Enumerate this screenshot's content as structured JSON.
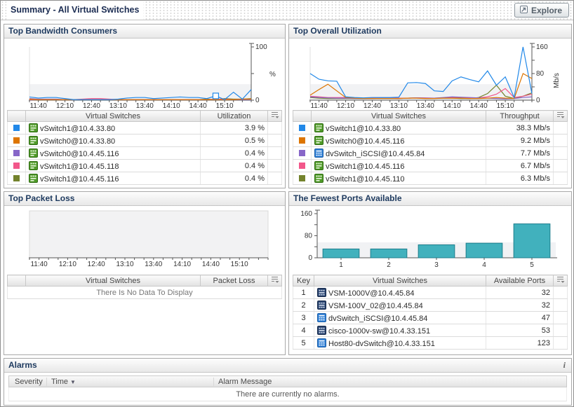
{
  "header": {
    "title": "Summary - All Virtual Switches",
    "explore_label": "Explore"
  },
  "panels": {
    "bandwidth": {
      "title": "Top Bandwidth Consumers",
      "columns": [
        "Virtual Switches",
        "Utilization"
      ],
      "rows": [
        {
          "swatch": "#2188e8",
          "icon": "vswitch-green",
          "name": "vSwitch1@10.4.33.80",
          "value": "3.9 %"
        },
        {
          "swatch": "#dd7500",
          "icon": "vswitch-green",
          "name": "vSwitch0@10.4.33.80",
          "value": "0.5 %"
        },
        {
          "swatch": "#8766c8",
          "icon": "vswitch-green",
          "name": "vSwitch0@10.4.45.116",
          "value": "0.4 %"
        },
        {
          "swatch": "#f2578a",
          "icon": "vswitch-green",
          "name": "vSwitch1@10.4.45.118",
          "value": "0.4 %"
        },
        {
          "swatch": "#73822c",
          "icon": "vswitch-green",
          "name": "vSwitch1@10.4.45.116",
          "value": "0.4 %"
        }
      ]
    },
    "utilization": {
      "title": "Top Overall Utilization",
      "columns": [
        "Virtual Switches",
        "Throughput"
      ],
      "rows": [
        {
          "swatch": "#2188e8",
          "icon": "vswitch-green",
          "name": "vSwitch1@10.4.33.80",
          "value": "38.3 Mb/s"
        },
        {
          "swatch": "#dd7500",
          "icon": "vswitch-green",
          "name": "vSwitch0@10.4.45.116",
          "value": "9.2 Mb/s"
        },
        {
          "swatch": "#8766c8",
          "icon": "dvswitch-blue",
          "name": "dvSwitch_iSCSI@10.4.45.84",
          "value": "7.7 Mb/s"
        },
        {
          "swatch": "#f2578a",
          "icon": "vswitch-green",
          "name": "vSwitch1@10.4.45.116",
          "value": "6.7 Mb/s"
        },
        {
          "swatch": "#73822c",
          "icon": "vswitch-green",
          "name": "vSwitch1@10.4.45.110",
          "value": "6.3 Mb/s"
        }
      ]
    },
    "packetloss": {
      "title": "Top Packet Loss",
      "columns": [
        "Virtual Switches",
        "Packet Loss"
      ],
      "no_data": "There Is No Data To Display"
    },
    "ports": {
      "title": "The Fewest Ports Available",
      "columns": [
        "Key",
        "Virtual Switches",
        "Available Ports"
      ],
      "rows": [
        {
          "key": "1",
          "icon": "vsm-navy",
          "name": "VSM-1000V@10.4.45.84",
          "value": "32"
        },
        {
          "key": "2",
          "icon": "vsm-navy",
          "name": "VSM-100V_02@10.4.45.84",
          "value": "32"
        },
        {
          "key": "3",
          "icon": "dvswitch-blue",
          "name": "dvSwitch_iSCSI@10.4.45.84",
          "value": "47"
        },
        {
          "key": "4",
          "icon": "vsm-navy",
          "name": "cisco-1000v-sw@10.4.33.151",
          "value": "53"
        },
        {
          "key": "5",
          "icon": "dvswitch-blue",
          "name": "Host80-dvSwitch@10.4.33.151",
          "value": "123"
        }
      ]
    }
  },
  "alarms": {
    "title": "Alarms",
    "info_icon": "i",
    "columns": [
      "Severity",
      "Time",
      "Alarm Message"
    ],
    "sort_indicator": "▼",
    "empty_message": "There are currently no alarms."
  },
  "chart_data": [
    {
      "id": "bandwidth",
      "type": "line",
      "title": "Top Bandwidth Consumers",
      "ylabel": "%",
      "ylim": [
        0,
        100
      ],
      "yticks": [
        0,
        50,
        100
      ],
      "ytick_labels": [
        "0",
        "",
        "100"
      ],
      "x_labels": [
        "11:40",
        "12:10",
        "12:40",
        "13:10",
        "13:40",
        "14:10",
        "14:40",
        "15:10"
      ],
      "series": [
        {
          "name": "vSwitch1@10.4.33.80",
          "color": "#2188e8",
          "values": [
            6,
            4,
            5,
            5,
            3,
            1,
            1,
            1,
            1,
            1,
            2,
            4,
            5,
            5,
            3,
            4,
            5,
            6,
            5,
            5,
            3,
            8,
            1,
            15,
            2,
            20
          ],
          "marker_index": 21
        },
        {
          "name": "vSwitch0@10.4.33.80",
          "color": "#dd7500",
          "values": [
            2,
            1,
            1,
            1,
            1,
            1,
            1,
            1,
            1,
            1,
            1,
            1,
            1,
            1,
            1,
            1,
            1,
            1,
            1,
            1,
            1,
            1,
            1,
            1,
            2,
            2
          ]
        },
        {
          "name": "vSwitch0@10.4.45.116",
          "color": "#8766c8",
          "values": [
            3,
            2,
            2,
            2,
            1,
            1,
            1,
            1,
            1,
            1,
            1,
            1,
            1,
            1,
            1,
            1,
            1,
            1,
            1,
            1,
            1,
            1,
            1,
            1,
            1,
            1
          ]
        },
        {
          "name": "vSwitch1@10.4.45.118",
          "color": "#f2578a",
          "values": [
            1,
            1,
            1,
            1,
            1,
            1,
            2,
            3,
            3,
            2,
            1,
            1,
            1,
            1,
            1,
            1,
            1,
            1,
            1,
            1,
            1,
            2,
            2,
            1,
            2,
            2
          ]
        },
        {
          "name": "vSwitch1@10.4.45.116",
          "color": "#73822c",
          "values": [
            1,
            1,
            1,
            1,
            1,
            1,
            1,
            1,
            1,
            1,
            1,
            1,
            1,
            1,
            1,
            1,
            1,
            1,
            1,
            1,
            2,
            1,
            3,
            2,
            2,
            3
          ]
        }
      ]
    },
    {
      "id": "utilization",
      "type": "line",
      "title": "Top Overall Utilization",
      "ylabel": "Mb/s",
      "ylim": [
        0,
        160
      ],
      "yticks": [
        0,
        40,
        80,
        120,
        160
      ],
      "ytick_labels": [
        "0",
        "",
        "80",
        "",
        "160"
      ],
      "x_labels": [
        "11:40",
        "12:10",
        "12:40",
        "13:10",
        "13:40",
        "14:10",
        "14:40",
        "15:10"
      ],
      "series": [
        {
          "name": "vSwitch1@10.4.33.80",
          "color": "#2188e8",
          "values": [
            80,
            63,
            58,
            57,
            10,
            8,
            7,
            8,
            8,
            8,
            9,
            52,
            53,
            50,
            28,
            26,
            58,
            70,
            62,
            55,
            88,
            45,
            70,
            8,
            160,
            20
          ]
        },
        {
          "name": "vSwitch0@10.4.45.116",
          "color": "#dd7500",
          "values": [
            15,
            32,
            48,
            28,
            8,
            6,
            5,
            5,
            5,
            5,
            5,
            6,
            6,
            5,
            5,
            6,
            6,
            6,
            5,
            5,
            6,
            8,
            6,
            5,
            80,
            65
          ]
        },
        {
          "name": "dvSwitch_iSCSI@10.4.45.84",
          "color": "#8766c8",
          "values": [
            10,
            8,
            7,
            6,
            6,
            5,
            5,
            5,
            6,
            6,
            5,
            6,
            7,
            6,
            6,
            8,
            10,
            9,
            8,
            7,
            6,
            5,
            4,
            5,
            8,
            10
          ]
        },
        {
          "name": "vSwitch1@10.4.45.116",
          "color": "#f2578a",
          "values": [
            12,
            10,
            8,
            8,
            8,
            7,
            6,
            6,
            7,
            7,
            6,
            6,
            7,
            7,
            6,
            7,
            8,
            8,
            7,
            7,
            10,
            18,
            35,
            8,
            12,
            18
          ]
        },
        {
          "name": "vSwitch1@10.4.45.110",
          "color": "#73822c",
          "values": [
            8,
            6,
            5,
            5,
            5,
            5,
            5,
            6,
            6,
            7,
            6,
            6,
            7,
            6,
            6,
            6,
            6,
            5,
            5,
            8,
            20,
            45,
            12,
            5,
            12,
            22
          ]
        }
      ]
    },
    {
      "id": "packetloss",
      "type": "line",
      "title": "Top Packet Loss",
      "ylim": [
        0,
        100
      ],
      "series": [],
      "x_labels": [
        "11:40",
        "12:10",
        "12:40",
        "13:10",
        "13:40",
        "14:10",
        "14:40",
        "15:10"
      ],
      "no_data": true
    },
    {
      "id": "ports",
      "type": "bar",
      "title": "The Fewest Ports Available",
      "categories": [
        "1",
        "2",
        "3",
        "4",
        "5"
      ],
      "values": [
        32,
        32,
        47,
        53,
        123
      ],
      "ylim": [
        0,
        160
      ],
      "yticks": [
        0,
        40,
        80,
        120,
        160
      ],
      "ytick_labels": [
        "0",
        "",
        "80",
        "",
        "160"
      ],
      "bar_color": "#41b1bd",
      "bar_border": "#1d7e8c"
    }
  ]
}
